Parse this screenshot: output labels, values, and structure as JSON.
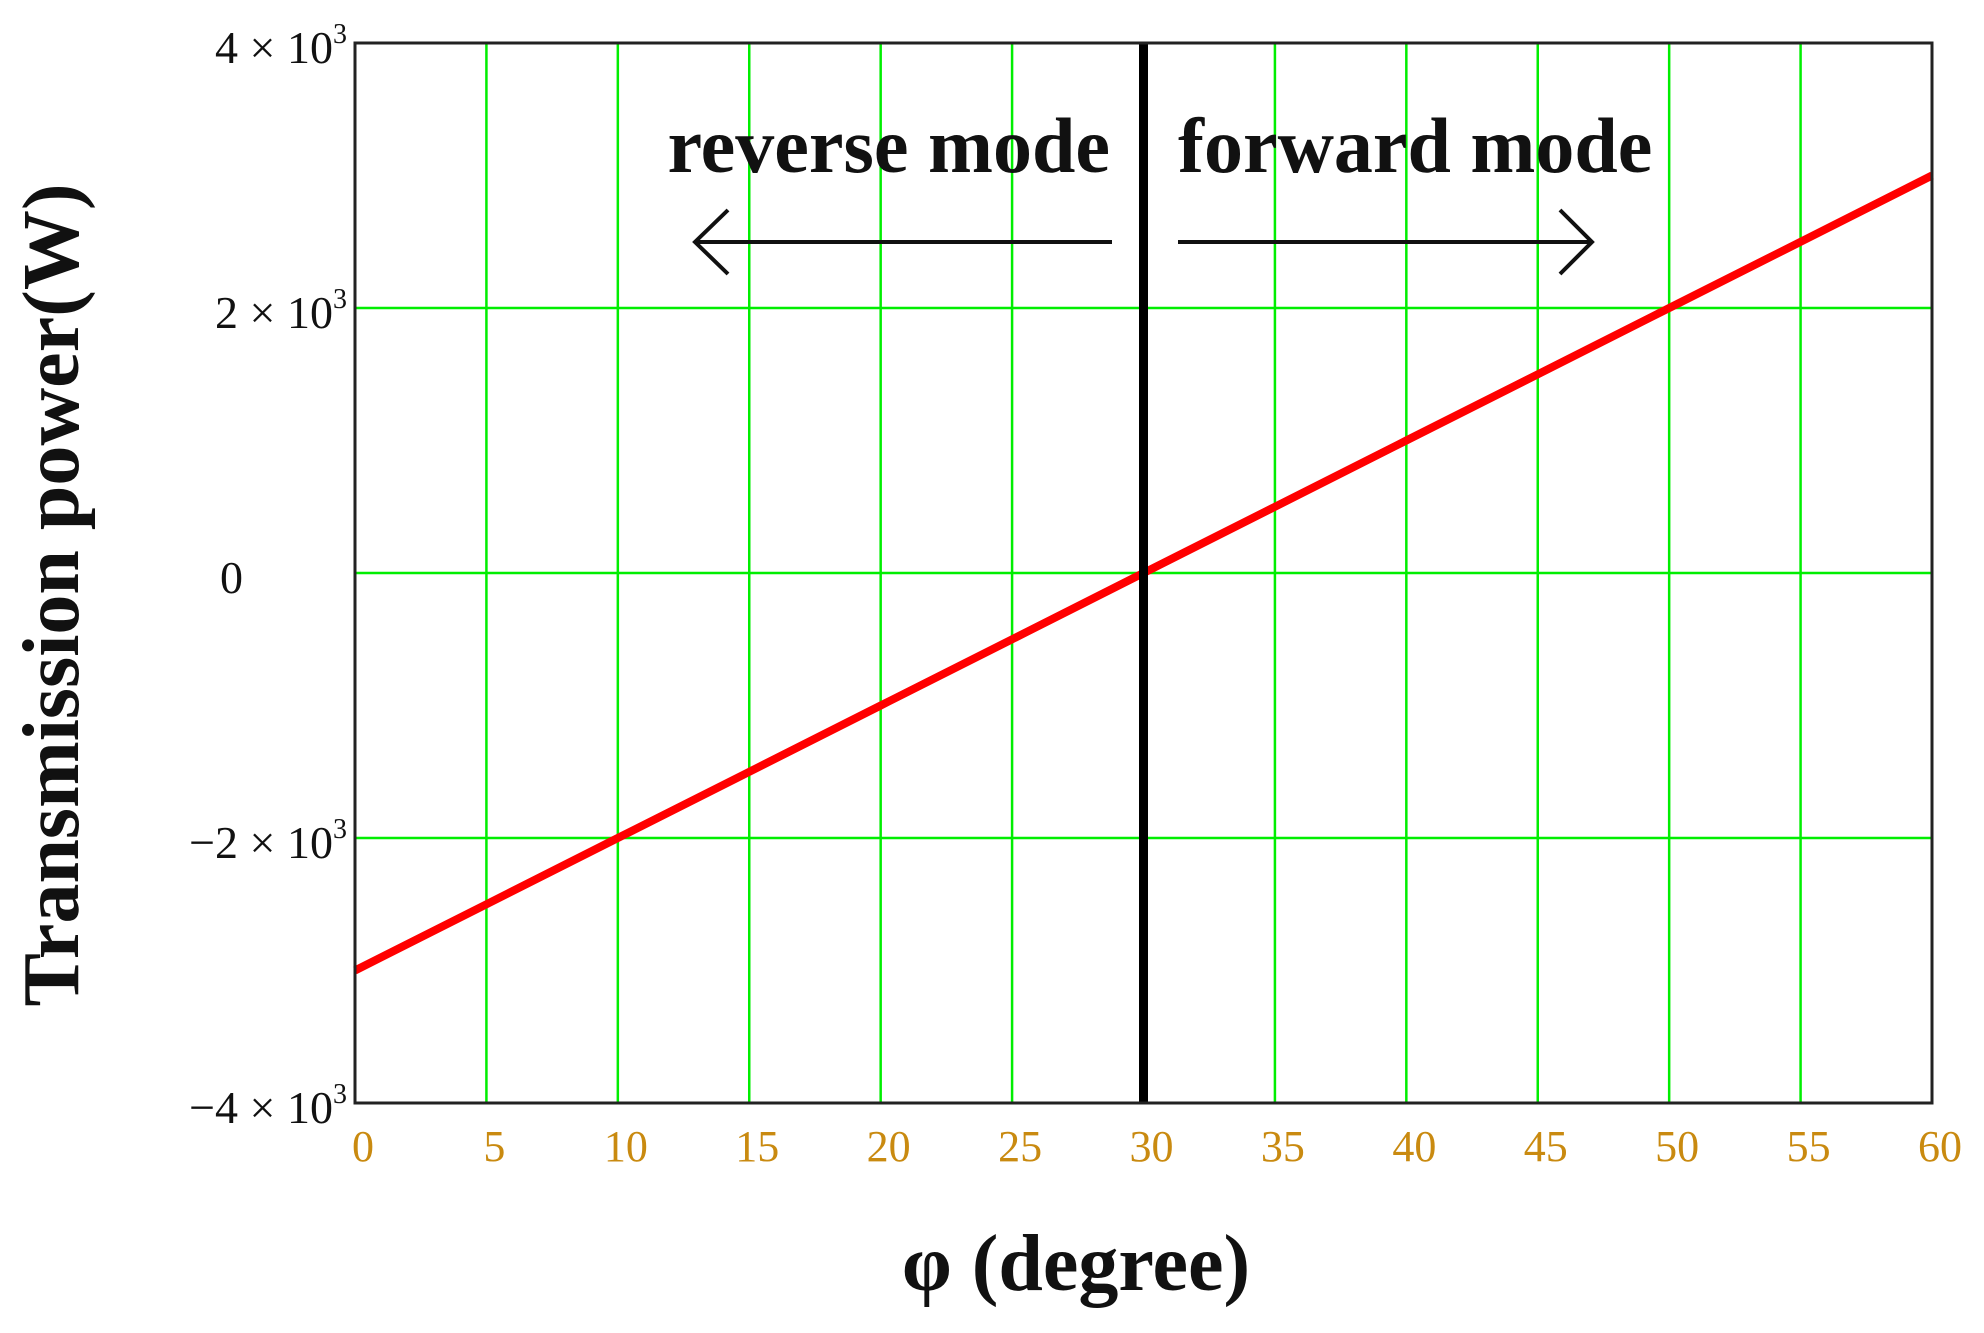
{
  "chart_data": {
    "type": "line",
    "title": "",
    "xlabel": "φ (degree)",
    "ylabel": "Transmission power(W)",
    "xlim": [
      0,
      60
    ],
    "ylim": [
      -4000,
      4000
    ],
    "grid": true,
    "x_ticks": [
      0,
      5,
      10,
      15,
      20,
      25,
      30,
      35,
      40,
      45,
      50,
      55,
      60
    ],
    "x_tick_labels": [
      "0",
      "5",
      "10",
      "15",
      "20",
      "25",
      "30",
      "35",
      "40",
      "45",
      "50",
      "55",
      "60"
    ],
    "y_ticks": [
      4000,
      2000,
      0,
      -2000,
      -4000
    ],
    "y_tick_labels": [
      {
        "mantissa": "4",
        "times": " × 10",
        "exp": "3"
      },
      {
        "mantissa": "2",
        "times": " × 10",
        "exp": "3"
      },
      {
        "mantissa": "0",
        "times": "",
        "exp": ""
      },
      {
        "mantissa": "−2",
        "times": " × 10",
        "exp": "3"
      },
      {
        "mantissa": "−4",
        "times": " × 10",
        "exp": "3"
      }
    ],
    "series": [
      {
        "color": "#ff0000",
        "x": [
          0,
          5,
          10,
          15,
          20,
          25,
          30,
          35,
          40,
          45,
          50,
          55,
          60
        ],
        "y": [
          -3000,
          -2500,
          -2000,
          -1500,
          -1000,
          -500,
          0,
          500,
          1000,
          1500,
          2000,
          2500,
          3000
        ]
      }
    ],
    "divider": {
      "x": 30,
      "color": "#000000"
    },
    "annotations": [
      {
        "text": "reverse mode",
        "arrow": "left"
      },
      {
        "text": "forward mode",
        "arrow": "right"
      }
    ],
    "colors": {
      "grid": "#00ee00",
      "axis_frame": "#222222",
      "x_tick_text": "#c98a10"
    }
  }
}
